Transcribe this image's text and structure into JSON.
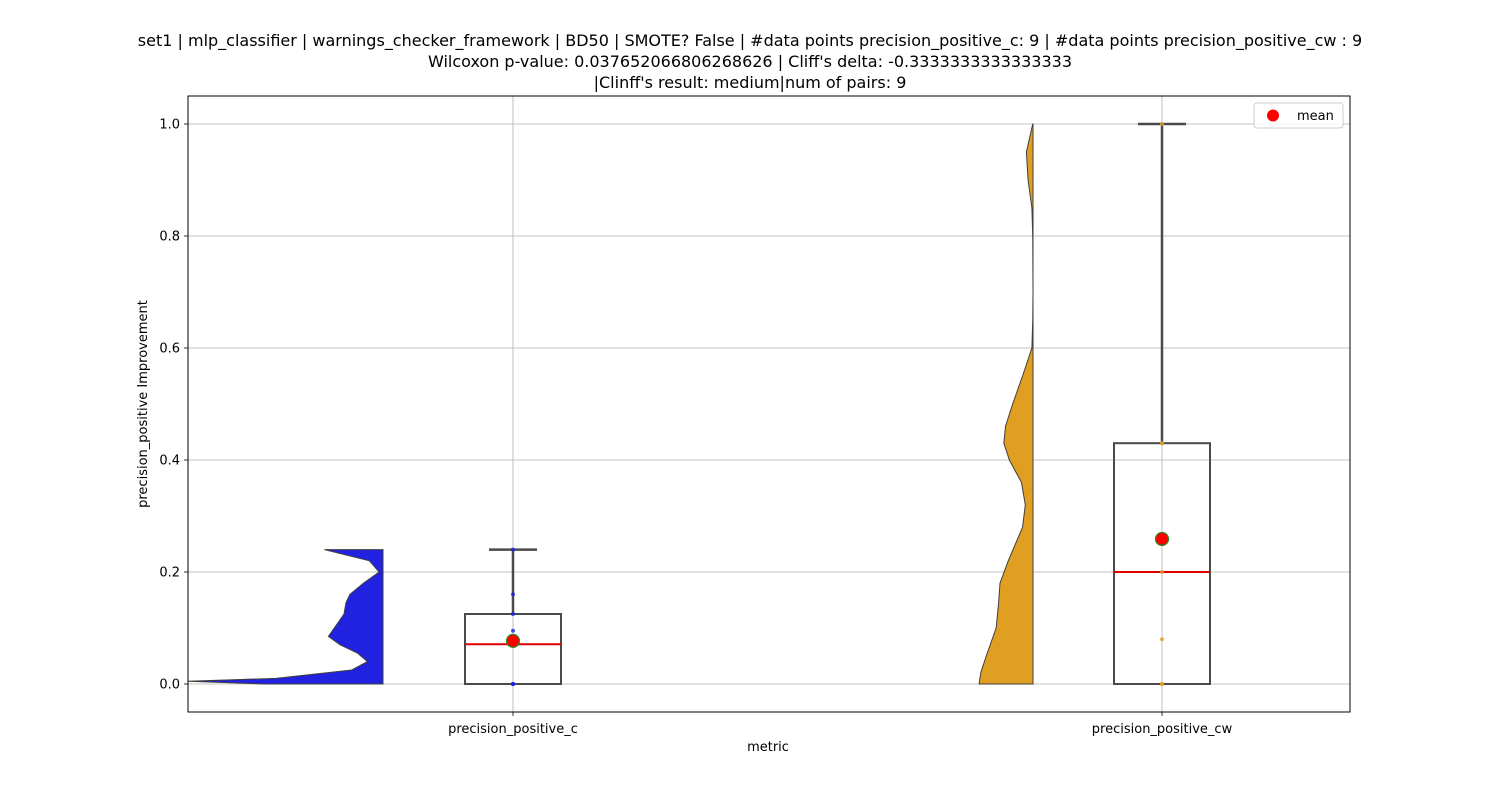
{
  "chart_data": {
    "type": "violin-box",
    "title_lines": [
      "set1 | mlp_classifier | warnings_checker_framework | BD50 | SMOTE? False | #data points precision_positive_c: 9 | #data points precision_positive_cw : 9",
      "Wilcoxon p-value: 0.037652066806268626 | Cliff's delta: -0.3333333333333333",
      "|Clinff's result: medium|num of pairs: 9"
    ],
    "xlabel": "metric",
    "ylabel": "precision_positive Improvement",
    "ylim": [
      -0.05,
      1.05
    ],
    "yticks": [
      0.0,
      0.2,
      0.4,
      0.6,
      0.8,
      1.0
    ],
    "ytick_labels": [
      "0.0",
      "0.2",
      "0.4",
      "0.6",
      "0.8",
      "1.0"
    ],
    "grid": true,
    "legend": {
      "position": "top-right",
      "entries": [
        {
          "label": "mean",
          "color": "#ff0000"
        }
      ]
    },
    "categories": [
      "precision_positive_c",
      "precision_positive_cw"
    ],
    "series": [
      {
        "name": "precision_positive_c",
        "violin_color": "#2121e0",
        "point_color": "#2121e0",
        "box": {
          "q1": 0.0,
          "median": 0.071,
          "q3": 0.125,
          "whisker_low": 0.0,
          "whisker_high": 0.24
        },
        "mean": 0.077,
        "points": [
          0.0,
          0.0,
          0.0,
          0.071,
          0.077,
          0.095,
          0.125,
          0.16,
          0.24
        ],
        "violin_profile": [
          [
            0.0,
            0.61
          ],
          [
            0.005,
            1.0
          ],
          [
            0.01,
            0.55
          ],
          [
            0.025,
            0.16
          ],
          [
            0.04,
            0.08
          ],
          [
            0.055,
            0.13
          ],
          [
            0.07,
            0.22
          ],
          [
            0.085,
            0.28
          ],
          [
            0.1,
            0.25
          ],
          [
            0.125,
            0.2
          ],
          [
            0.145,
            0.19
          ],
          [
            0.16,
            0.17
          ],
          [
            0.18,
            0.1
          ],
          [
            0.2,
            0.02
          ],
          [
            0.22,
            0.07
          ],
          [
            0.24,
            0.3
          ]
        ]
      },
      {
        "name": "precision_positive_cw",
        "violin_color": "#e09f21",
        "point_color": "#e09f21",
        "box": {
          "q1": 0.0,
          "median": 0.2,
          "q3": 0.43,
          "whisker_low": 0.0,
          "whisker_high": 1.0
        },
        "mean": 0.259,
        "points": [
          0.0,
          0.0,
          0.0,
          0.08,
          0.2,
          0.25,
          0.43,
          0.43,
          1.0
        ],
        "violin_profile": [
          [
            0.0,
            0.98
          ],
          [
            0.02,
            0.95
          ],
          [
            0.05,
            0.85
          ],
          [
            0.1,
            0.67
          ],
          [
            0.14,
            0.63
          ],
          [
            0.18,
            0.6
          ],
          [
            0.22,
            0.45
          ],
          [
            0.28,
            0.19
          ],
          [
            0.32,
            0.14
          ],
          [
            0.36,
            0.21
          ],
          [
            0.4,
            0.43
          ],
          [
            0.43,
            0.53
          ],
          [
            0.46,
            0.5
          ],
          [
            0.5,
            0.37
          ],
          [
            0.55,
            0.19
          ],
          [
            0.6,
            0.02
          ],
          [
            0.65,
            0.005
          ],
          [
            0.7,
            0.0
          ],
          [
            0.8,
            0.005
          ],
          [
            0.85,
            0.02
          ],
          [
            0.9,
            0.09
          ],
          [
            0.95,
            0.12
          ],
          [
            1.0,
            0.005
          ]
        ]
      }
    ]
  }
}
